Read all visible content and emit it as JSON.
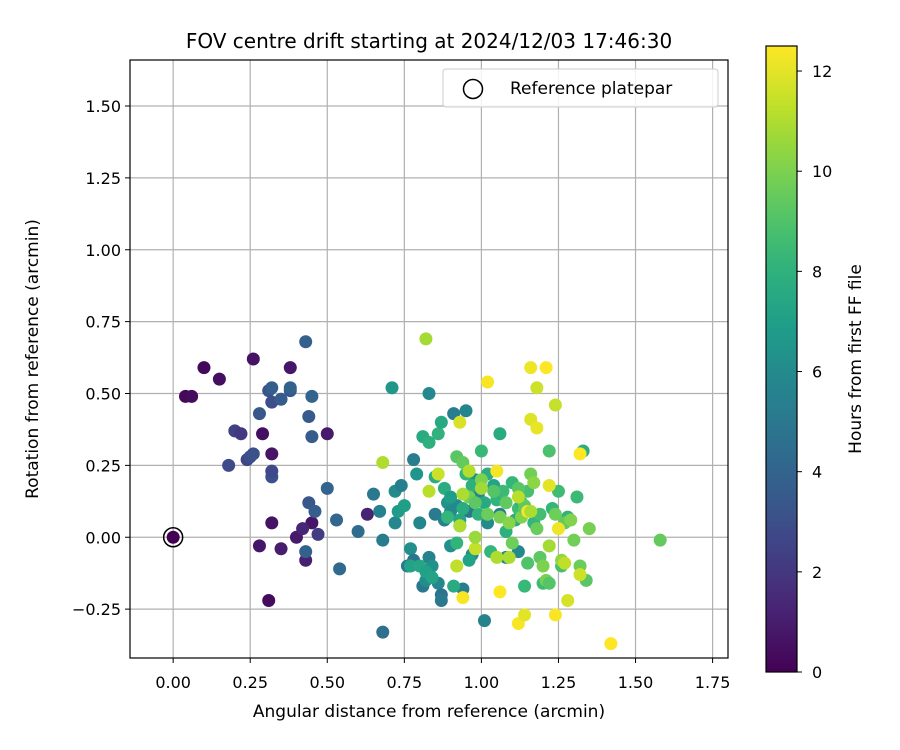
{
  "chart_data": {
    "type": "scatter",
    "title": "FOV centre drift starting at 2024/12/03 17:46:30",
    "xlabel": "Angular distance from reference (arcmin)",
    "ylabel": "Rotation from reference (arcmin)",
    "xlim": [
      -0.14,
      1.8
    ],
    "ylim": [
      -0.42,
      1.66
    ],
    "xticks": [
      0.0,
      0.25,
      0.5,
      0.75,
      1.0,
      1.25,
      1.5,
      1.75
    ],
    "xtick_labels": [
      "0.00",
      "0.25",
      "0.50",
      "0.75",
      "1.00",
      "1.25",
      "1.50",
      "1.75"
    ],
    "yticks": [
      -0.25,
      0.0,
      0.25,
      0.5,
      0.75,
      1.0,
      1.25,
      1.5
    ],
    "ytick_labels": [
      "−0.25",
      "0.00",
      "0.25",
      "0.50",
      "0.75",
      "1.00",
      "1.25",
      "1.50"
    ],
    "grid": true,
    "legend": {
      "position": "top-right",
      "entries": [
        "Reference platepar"
      ]
    },
    "reference_point": {
      "x": 0.0,
      "y": 0.0,
      "label": "Reference platepar"
    },
    "colorbar": {
      "label": "Hours from first FF file",
      "colormap": "viridis",
      "range": [
        0,
        12.5
      ],
      "ticks": [
        0,
        2,
        4,
        6,
        8,
        10,
        12
      ],
      "tick_labels": [
        "0",
        "2",
        "4",
        "6",
        "8",
        "10",
        "12"
      ]
    },
    "points": [
      {
        "x": 0.04,
        "y": 0.49,
        "h": 0.3
      },
      {
        "x": 0.06,
        "y": 0.49,
        "h": 0.4
      },
      {
        "x": 0.1,
        "y": 0.59,
        "h": 0.3
      },
      {
        "x": 0.15,
        "y": 0.55,
        "h": 0.5
      },
      {
        "x": 0.26,
        "y": 0.62,
        "h": 0.6
      },
      {
        "x": 0.38,
        "y": 0.59,
        "h": 0.8
      },
      {
        "x": 0.29,
        "y": 0.36,
        "h": 0.5
      },
      {
        "x": 0.5,
        "y": 0.36,
        "h": 0.9
      },
      {
        "x": 0.32,
        "y": 0.29,
        "h": 0.7
      },
      {
        "x": 0.31,
        "y": -0.22,
        "h": 0.4
      },
      {
        "x": 0.32,
        "y": 0.05,
        "h": 0.6
      },
      {
        "x": 0.28,
        "y": -0.03,
        "h": 0.8
      },
      {
        "x": 0.35,
        "y": -0.04,
        "h": 1.0
      },
      {
        "x": 0.4,
        "y": 0.0,
        "h": 0.9
      },
      {
        "x": 0.45,
        "y": 0.05,
        "h": 0.7
      },
      {
        "x": 0.43,
        "y": -0.08,
        "h": 1.1
      },
      {
        "x": 0.63,
        "y": 0.08,
        "h": 1.2
      },
      {
        "x": 0.42,
        "y": 0.03,
        "h": 1.3
      },
      {
        "x": 0.47,
        "y": 0.01,
        "h": 2.2
      },
      {
        "x": 0.2,
        "y": 0.37,
        "h": 2.4
      },
      {
        "x": 0.22,
        "y": 0.36,
        "h": 2.1
      },
      {
        "x": 0.24,
        "y": 0.27,
        "h": 2.6
      },
      {
        "x": 0.25,
        "y": 0.28,
        "h": 2.9
      },
      {
        "x": 0.26,
        "y": 0.29,
        "h": 3.1
      },
      {
        "x": 0.18,
        "y": 0.25,
        "h": 2.8
      },
      {
        "x": 0.28,
        "y": 0.43,
        "h": 3.4
      },
      {
        "x": 0.31,
        "y": 0.51,
        "h": 3.2
      },
      {
        "x": 0.32,
        "y": 0.52,
        "h": 3.7
      },
      {
        "x": 0.32,
        "y": 0.47,
        "h": 3.0
      },
      {
        "x": 0.35,
        "y": 0.48,
        "h": 3.6
      },
      {
        "x": 0.38,
        "y": 0.51,
        "h": 3.3
      },
      {
        "x": 0.38,
        "y": 0.52,
        "h": 3.9
      },
      {
        "x": 0.43,
        "y": 0.68,
        "h": 3.8
      },
      {
        "x": 0.44,
        "y": 0.42,
        "h": 3.5
      },
      {
        "x": 0.45,
        "y": 0.49,
        "h": 4.0
      },
      {
        "x": 0.45,
        "y": 0.35,
        "h": 3.6
      },
      {
        "x": 0.32,
        "y": 0.21,
        "h": 3.1
      },
      {
        "x": 0.32,
        "y": 0.23,
        "h": 2.7
      },
      {
        "x": 0.44,
        "y": 0.12,
        "h": 3.4
      },
      {
        "x": 0.46,
        "y": 0.09,
        "h": 3.7
      },
      {
        "x": 0.5,
        "y": 0.17,
        "h": 4.0
      },
      {
        "x": 0.43,
        "y": -0.05,
        "h": 3.8
      },
      {
        "x": 0.53,
        "y": 0.06,
        "h": 4.1
      },
      {
        "x": 0.54,
        "y": -0.11,
        "h": 4.3
      },
      {
        "x": 0.68,
        "y": -0.33,
        "h": 4.6
      },
      {
        "x": 0.6,
        "y": 0.02,
        "h": 4.4
      },
      {
        "x": 0.65,
        "y": 0.15,
        "h": 5.0
      },
      {
        "x": 0.67,
        "y": 0.09,
        "h": 5.5
      },
      {
        "x": 0.68,
        "y": -0.01,
        "h": 5.2
      },
      {
        "x": 0.72,
        "y": 0.05,
        "h": 5.8
      },
      {
        "x": 0.72,
        "y": 0.16,
        "h": 6.0
      },
      {
        "x": 0.74,
        "y": 0.18,
        "h": 5.4
      },
      {
        "x": 0.76,
        "y": -0.1,
        "h": 5.1
      },
      {
        "x": 0.77,
        "y": -0.04,
        "h": 6.2
      },
      {
        "x": 0.78,
        "y": -0.08,
        "h": 4.9
      },
      {
        "x": 0.78,
        "y": 0.27,
        "h": 5.3
      },
      {
        "x": 0.79,
        "y": 0.22,
        "h": 6.5
      },
      {
        "x": 0.8,
        "y": 0.05,
        "h": 5.7
      },
      {
        "x": 0.81,
        "y": -0.17,
        "h": 5.0
      },
      {
        "x": 0.82,
        "y": -0.15,
        "h": 6.1
      },
      {
        "x": 0.83,
        "y": -0.07,
        "h": 5.6
      },
      {
        "x": 0.83,
        "y": 0.5,
        "h": 5.9
      },
      {
        "x": 0.84,
        "y": -0.1,
        "h": 6.3
      },
      {
        "x": 0.85,
        "y": 0.08,
        "h": 5.2
      },
      {
        "x": 0.86,
        "y": -0.16,
        "h": 5.8
      },
      {
        "x": 0.87,
        "y": -0.2,
        "h": 4.8
      },
      {
        "x": 0.87,
        "y": -0.22,
        "h": 5.1
      },
      {
        "x": 0.88,
        "y": 0.06,
        "h": 5.5
      },
      {
        "x": 0.89,
        "y": 0.12,
        "h": 6.4
      },
      {
        "x": 0.9,
        "y": 0.09,
        "h": 6.0
      },
      {
        "x": 0.9,
        "y": -0.03,
        "h": 6.2
      },
      {
        "x": 0.91,
        "y": 0.43,
        "h": 5.3
      },
      {
        "x": 0.92,
        "y": 0.11,
        "h": 5.9
      },
      {
        "x": 0.93,
        "y": 0.04,
        "h": 6.5
      },
      {
        "x": 0.94,
        "y": -0.18,
        "h": 5.4
      },
      {
        "x": 0.95,
        "y": 0.44,
        "h": 5.7
      },
      {
        "x": 0.96,
        "y": 0.09,
        "h": 5.0
      },
      {
        "x": 0.97,
        "y": -0.06,
        "h": 6.1
      },
      {
        "x": 0.98,
        "y": 0.2,
        "h": 6.3
      },
      {
        "x": 0.99,
        "y": 0.15,
        "h": 5.8
      },
      {
        "x": 1.01,
        "y": -0.29,
        "h": 5.6
      },
      {
        "x": 1.02,
        "y": 0.05,
        "h": 6.0
      },
      {
        "x": 1.06,
        "y": 0.08,
        "h": 5.2
      },
      {
        "x": 1.08,
        "y": -0.07,
        "h": 5.5
      },
      {
        "x": 1.12,
        "y": -0.05,
        "h": 5.9
      },
      {
        "x": 0.71,
        "y": 0.52,
        "h": 6.6
      },
      {
        "x": 0.73,
        "y": 0.09,
        "h": 6.8
      },
      {
        "x": 0.75,
        "y": 0.11,
        "h": 7.0
      },
      {
        "x": 0.77,
        "y": -0.1,
        "h": 7.2
      },
      {
        "x": 0.8,
        "y": -0.1,
        "h": 7.4
      },
      {
        "x": 0.81,
        "y": 0.35,
        "h": 7.6
      },
      {
        "x": 0.82,
        "y": -0.12,
        "h": 7.1
      },
      {
        "x": 0.83,
        "y": 0.33,
        "h": 7.9
      },
      {
        "x": 0.84,
        "y": -0.14,
        "h": 7.3
      },
      {
        "x": 0.85,
        "y": 0.21,
        "h": 7.7
      },
      {
        "x": 0.86,
        "y": 0.36,
        "h": 8.0
      },
      {
        "x": 0.87,
        "y": 0.4,
        "h": 7.5
      },
      {
        "x": 0.88,
        "y": 0.17,
        "h": 7.8
      },
      {
        "x": 0.89,
        "y": 0.07,
        "h": 8.2
      },
      {
        "x": 0.9,
        "y": 0.14,
        "h": 7.0
      },
      {
        "x": 0.91,
        "y": -0.17,
        "h": 7.6
      },
      {
        "x": 0.92,
        "y": -0.02,
        "h": 8.1
      },
      {
        "x": 0.93,
        "y": 0.06,
        "h": 7.4
      },
      {
        "x": 0.94,
        "y": 0.1,
        "h": 7.7
      },
      {
        "x": 0.95,
        "y": 0.22,
        "h": 8.3
      },
      {
        "x": 0.96,
        "y": -0.08,
        "h": 7.2
      },
      {
        "x": 0.97,
        "y": 0.18,
        "h": 7.9
      },
      {
        "x": 0.99,
        "y": 0.08,
        "h": 8.0
      },
      {
        "x": 1.0,
        "y": 0.3,
        "h": 8.4
      },
      {
        "x": 1.01,
        "y": 0.12,
        "h": 7.5
      },
      {
        "x": 1.02,
        "y": 0.22,
        "h": 7.8
      },
      {
        "x": 1.03,
        "y": -0.05,
        "h": 8.2
      },
      {
        "x": 1.04,
        "y": 0.18,
        "h": 7.3
      },
      {
        "x": 1.05,
        "y": 0.13,
        "h": 8.1
      },
      {
        "x": 1.06,
        "y": 0.36,
        "h": 7.6
      },
      {
        "x": 1.07,
        "y": 0.16,
        "h": 8.5
      },
      {
        "x": 1.08,
        "y": 0.02,
        "h": 7.9
      },
      {
        "x": 1.1,
        "y": 0.19,
        "h": 8.3
      },
      {
        "x": 1.11,
        "y": 0.06,
        "h": 7.7
      },
      {
        "x": 1.12,
        "y": 0.1,
        "h": 8.6
      },
      {
        "x": 1.13,
        "y": 0.12,
        "h": 8.0
      },
      {
        "x": 1.14,
        "y": -0.17,
        "h": 8.4
      },
      {
        "x": 1.15,
        "y": 0.16,
        "h": 8.8
      },
      {
        "x": 1.17,
        "y": 0.05,
        "h": 8.2
      },
      {
        "x": 1.19,
        "y": 0.08,
        "h": 8.7
      },
      {
        "x": 1.2,
        "y": -0.16,
        "h": 8.5
      },
      {
        "x": 1.22,
        "y": 0.3,
        "h": 8.9
      },
      {
        "x": 1.23,
        "y": 0.1,
        "h": 8.3
      },
      {
        "x": 1.25,
        "y": 0.16,
        "h": 8.6
      },
      {
        "x": 1.26,
        "y": -0.1,
        "h": 8.8
      },
      {
        "x": 1.28,
        "y": 0.07,
        "h": 8.1
      },
      {
        "x": 1.31,
        "y": 0.14,
        "h": 8.5
      },
      {
        "x": 1.33,
        "y": 0.3,
        "h": 7.8
      },
      {
        "x": 0.92,
        "y": 0.28,
        "h": 9.2
      },
      {
        "x": 0.94,
        "y": 0.26,
        "h": 9.5
      },
      {
        "x": 0.96,
        "y": 0.14,
        "h": 9.8
      },
      {
        "x": 0.98,
        "y": 0.12,
        "h": 9.3
      },
      {
        "x": 1.0,
        "y": 0.2,
        "h": 10.0
      },
      {
        "x": 1.02,
        "y": 0.08,
        "h": 9.6
      },
      {
        "x": 1.04,
        "y": 0.16,
        "h": 9.1
      },
      {
        "x": 1.06,
        "y": 0.07,
        "h": 9.9
      },
      {
        "x": 1.08,
        "y": 0.12,
        "h": 9.4
      },
      {
        "x": 1.09,
        "y": 0.05,
        "h": 10.2
      },
      {
        "x": 1.1,
        "y": -0.02,
        "h": 9.7
      },
      {
        "x": 1.12,
        "y": 0.17,
        "h": 9.2
      },
      {
        "x": 1.13,
        "y": 0.07,
        "h": 10.1
      },
      {
        "x": 1.14,
        "y": 0.11,
        "h": 9.5
      },
      {
        "x": 1.15,
        "y": -0.09,
        "h": 9.0
      },
      {
        "x": 1.16,
        "y": 0.22,
        "h": 9.8
      },
      {
        "x": 1.17,
        "y": 0.19,
        "h": 10.3
      },
      {
        "x": 1.18,
        "y": 0.03,
        "h": 9.6
      },
      {
        "x": 1.19,
        "y": -0.07,
        "h": 9.3
      },
      {
        "x": 1.2,
        "y": -0.1,
        "h": 10.0
      },
      {
        "x": 1.21,
        "y": -0.15,
        "h": 9.9
      },
      {
        "x": 1.22,
        "y": -0.16,
        "h": 9.1
      },
      {
        "x": 1.24,
        "y": 0.08,
        "h": 9.7
      },
      {
        "x": 1.26,
        "y": -0.08,
        "h": 10.4
      },
      {
        "x": 1.27,
        "y": 0.05,
        "h": 9.4
      },
      {
        "x": 1.29,
        "y": 0.06,
        "h": 10.1
      },
      {
        "x": 1.3,
        "y": -0.01,
        "h": 9.8
      },
      {
        "x": 1.32,
        "y": -0.1,
        "h": 9.6
      },
      {
        "x": 1.34,
        "y": -0.15,
        "h": 9.2
      },
      {
        "x": 1.35,
        "y": 0.03,
        "h": 9.9
      },
      {
        "x": 1.58,
        "y": -0.01,
        "h": 9.5
      },
      {
        "x": 1.14,
        "y": 0.1,
        "h": 9.3
      },
      {
        "x": 0.68,
        "y": 0.26,
        "h": 11.0
      },
      {
        "x": 0.82,
        "y": 0.69,
        "h": 10.8
      },
      {
        "x": 0.83,
        "y": 0.16,
        "h": 11.2
      },
      {
        "x": 0.86,
        "y": 0.22,
        "h": 11.5
      },
      {
        "x": 0.92,
        "y": -0.1,
        "h": 11.3
      },
      {
        "x": 0.93,
        "y": 0.4,
        "h": 11.8
      },
      {
        "x": 0.94,
        "y": 0.15,
        "h": 10.9
      },
      {
        "x": 0.96,
        "y": 0.23,
        "h": 11.1
      },
      {
        "x": 0.98,
        "y": -0.04,
        "h": 11.4
      },
      {
        "x": 1.0,
        "y": 0.17,
        "h": 10.7
      },
      {
        "x": 1.02,
        "y": 0.54,
        "h": 12.4
      },
      {
        "x": 1.05,
        "y": 0.23,
        "h": 12.3
      },
      {
        "x": 1.06,
        "y": -0.19,
        "h": 12.5
      },
      {
        "x": 1.09,
        "y": -0.07,
        "h": 10.9
      },
      {
        "x": 1.12,
        "y": -0.3,
        "h": 12.4
      },
      {
        "x": 1.14,
        "y": -0.27,
        "h": 12.0
      },
      {
        "x": 1.15,
        "y": 0.09,
        "h": 12.3
      },
      {
        "x": 1.16,
        "y": 0.59,
        "h": 12.2
      },
      {
        "x": 1.16,
        "y": 0.41,
        "h": 11.9
      },
      {
        "x": 1.18,
        "y": 0.52,
        "h": 11.6
      },
      {
        "x": 1.18,
        "y": 0.38,
        "h": 12.1
      },
      {
        "x": 1.21,
        "y": 0.59,
        "h": 12.5
      },
      {
        "x": 1.22,
        "y": 0.18,
        "h": 12.0
      },
      {
        "x": 1.24,
        "y": 0.46,
        "h": 11.4
      },
      {
        "x": 1.24,
        "y": -0.27,
        "h": 12.4
      },
      {
        "x": 1.25,
        "y": 0.03,
        "h": 12.2
      },
      {
        "x": 1.27,
        "y": -0.09,
        "h": 11.3
      },
      {
        "x": 1.28,
        "y": -0.22,
        "h": 11.7
      },
      {
        "x": 1.32,
        "y": 0.29,
        "h": 12.5
      },
      {
        "x": 1.32,
        "y": -0.13,
        "h": 11.6
      },
      {
        "x": 1.42,
        "y": -0.37,
        "h": 12.5
      },
      {
        "x": 0.94,
        "y": -0.21,
        "h": 12.4
      },
      {
        "x": 1.22,
        "y": -0.03,
        "h": 10.8
      },
      {
        "x": 1.05,
        "y": -0.07,
        "h": 11.0
      },
      {
        "x": 1.12,
        "y": 0.14,
        "h": 11.2
      },
      {
        "x": 0.93,
        "y": 0.04,
        "h": 11.0
      },
      {
        "x": 1.16,
        "y": 0.09,
        "h": 10.9
      },
      {
        "x": 0.98,
        "y": -0.0,
        "h": 10.6
      },
      {
        "x": 0.0,
        "y": 0.0,
        "h": 0.0
      }
    ]
  }
}
